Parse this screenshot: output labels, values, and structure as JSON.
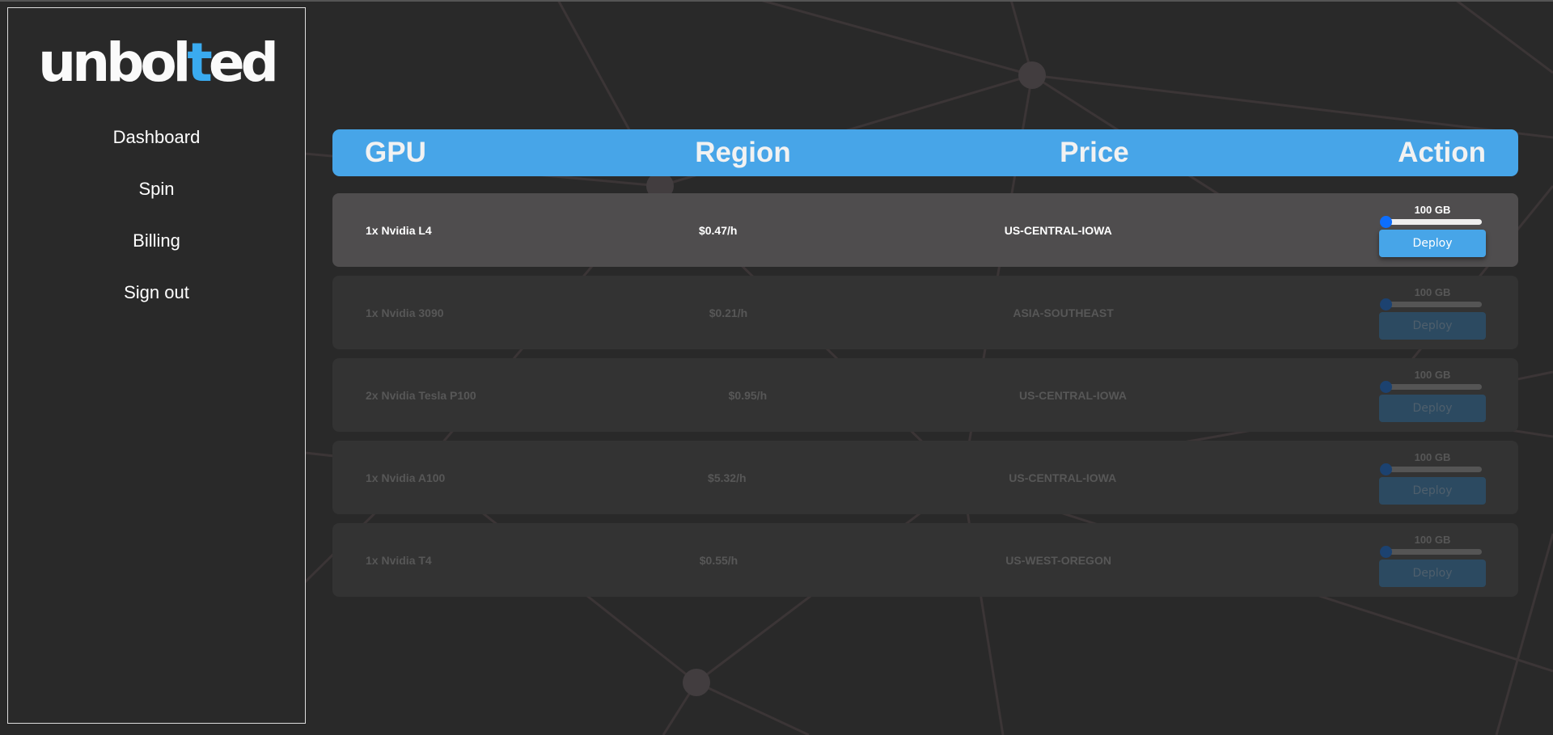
{
  "brand": {
    "logo_prefix": "unbol",
    "logo_accent": "t",
    "logo_suffix": "ed",
    "accent_color": "#3aabf0"
  },
  "sidebar": {
    "items": [
      {
        "label": "Dashboard"
      },
      {
        "label": "Spin"
      },
      {
        "label": "Billing"
      },
      {
        "label": "Sign out"
      }
    ]
  },
  "table": {
    "headers": [
      "GPU",
      "Region",
      "Price",
      "Action"
    ],
    "rows": [
      {
        "gpu": "1x Nvidia L4",
        "price": "$0.47/h",
        "region": "US-CENTRAL-IOWA",
        "storage": "100 GB",
        "slider_percent": 0,
        "button": "Deploy",
        "disabled": false
      },
      {
        "gpu": "1x Nvidia 3090",
        "price": "$0.21/h",
        "region": "ASIA-SOUTHEAST",
        "storage": "100 GB",
        "slider_percent": 0,
        "button": "Deploy",
        "disabled": true
      },
      {
        "gpu": "2x Nvidia Tesla P100",
        "price": "$0.95/h",
        "region": "US-CENTRAL-IOWA",
        "storage": "100 GB",
        "slider_percent": 0,
        "button": "Deploy",
        "disabled": true
      },
      {
        "gpu": "1x Nvidia A100",
        "price": "$5.32/h",
        "region": "US-CENTRAL-IOWA",
        "storage": "100 GB",
        "slider_percent": 0,
        "button": "Deploy",
        "disabled": true
      },
      {
        "gpu": "1x Nvidia T4",
        "price": "$0.55/h",
        "region": "US-WEST-OREGON",
        "storage": "100 GB",
        "slider_percent": 0,
        "button": "Deploy",
        "disabled": true
      }
    ]
  },
  "colors": {
    "header": "#47a5e8",
    "background": "#292929",
    "active_row": "#4f4d4e",
    "inactive_row": "#333333"
  }
}
